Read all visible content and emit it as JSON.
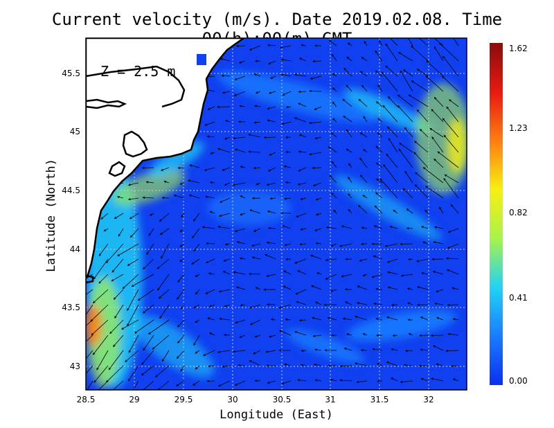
{
  "title": "Current velocity (m/s). Date 2019.02.08. Time 00(h):00(m) GMT",
  "depth_label": "Z = 2.5 m",
  "xlabel": "Longitude (East)",
  "ylabel": "Latitude (North)",
  "x_ticks": [
    "28.5",
    "29",
    "29.5",
    "30",
    "30.5",
    "31",
    "31.5",
    "32"
  ],
  "y_ticks": [
    "45.5",
    "45",
    "44.5",
    "44",
    "43.5",
    "43"
  ],
  "colorbar": {
    "ticks": [
      "1.62",
      "1.23",
      "0.82",
      "0.41",
      "0.00"
    ],
    "min": 0.0,
    "max": 1.62,
    "colors": [
      "#0a2ff0",
      "#1a7cff",
      "#22d3f5",
      "#a8f34a",
      "#f7ef12",
      "#ff7d12",
      "#e61a10",
      "#8a0c0c"
    ]
  },
  "chart_data": {
    "type": "heatmap",
    "title": "Current velocity (m/s). Date 2019.02.08. Time 00(h):00(m) GMT",
    "xlabel": "Longitude (East)",
    "ylabel": "Latitude (North)",
    "xlim": [
      28.5,
      32.4
    ],
    "ylim": [
      42.8,
      45.8
    ],
    "grid": true,
    "colorbar_range": [
      0.0,
      1.62
    ],
    "colorbar_position": "right",
    "annotation": "Z = 2.5 m"
  }
}
